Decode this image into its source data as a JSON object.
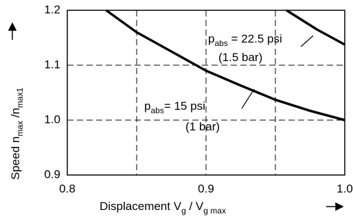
{
  "chart_data": {
    "type": "line",
    "x_label": [
      "Displacement V",
      "g",
      " / V",
      "g max"
    ],
    "y_label": [
      "Speed n",
      "max",
      " /n",
      "max1"
    ],
    "xlim": [
      0.8,
      1.0
    ],
    "ylim": [
      0.9,
      1.2
    ],
    "xticks": [
      0.8,
      0.9,
      {
        "value": 1,
        "label": "1.0"
      }
    ],
    "yticks": [
      0.9,
      {
        "value": 1,
        "label": "1.0"
      },
      1.1,
      1.2
    ],
    "xgrid": [
      0.85,
      0.9,
      0.95
    ],
    "ygrid": [
      1.0,
      1.1
    ],
    "color": "#000000",
    "series": [
      {
        "x": [
          0.828,
          0.85,
          0.875,
          0.9,
          0.925,
          0.95,
          0.975,
          1.0
        ],
        "values": [
          1.2,
          1.16,
          1.125,
          1.09,
          1.063,
          1.037,
          1.017,
          1.0
        ],
        "label": [
          "p",
          "abs",
          "= 15 psi"
        ],
        "note": "(1 bar)"
      },
      {
        "x": [
          0.958,
          0.98,
          1.0
        ],
        "values": [
          1.2,
          1.165,
          1.1375
        ],
        "label": [
          "p",
          "abs",
          " = 22.5 psi"
        ],
        "note": "(1.5 bar)"
      }
    ]
  }
}
